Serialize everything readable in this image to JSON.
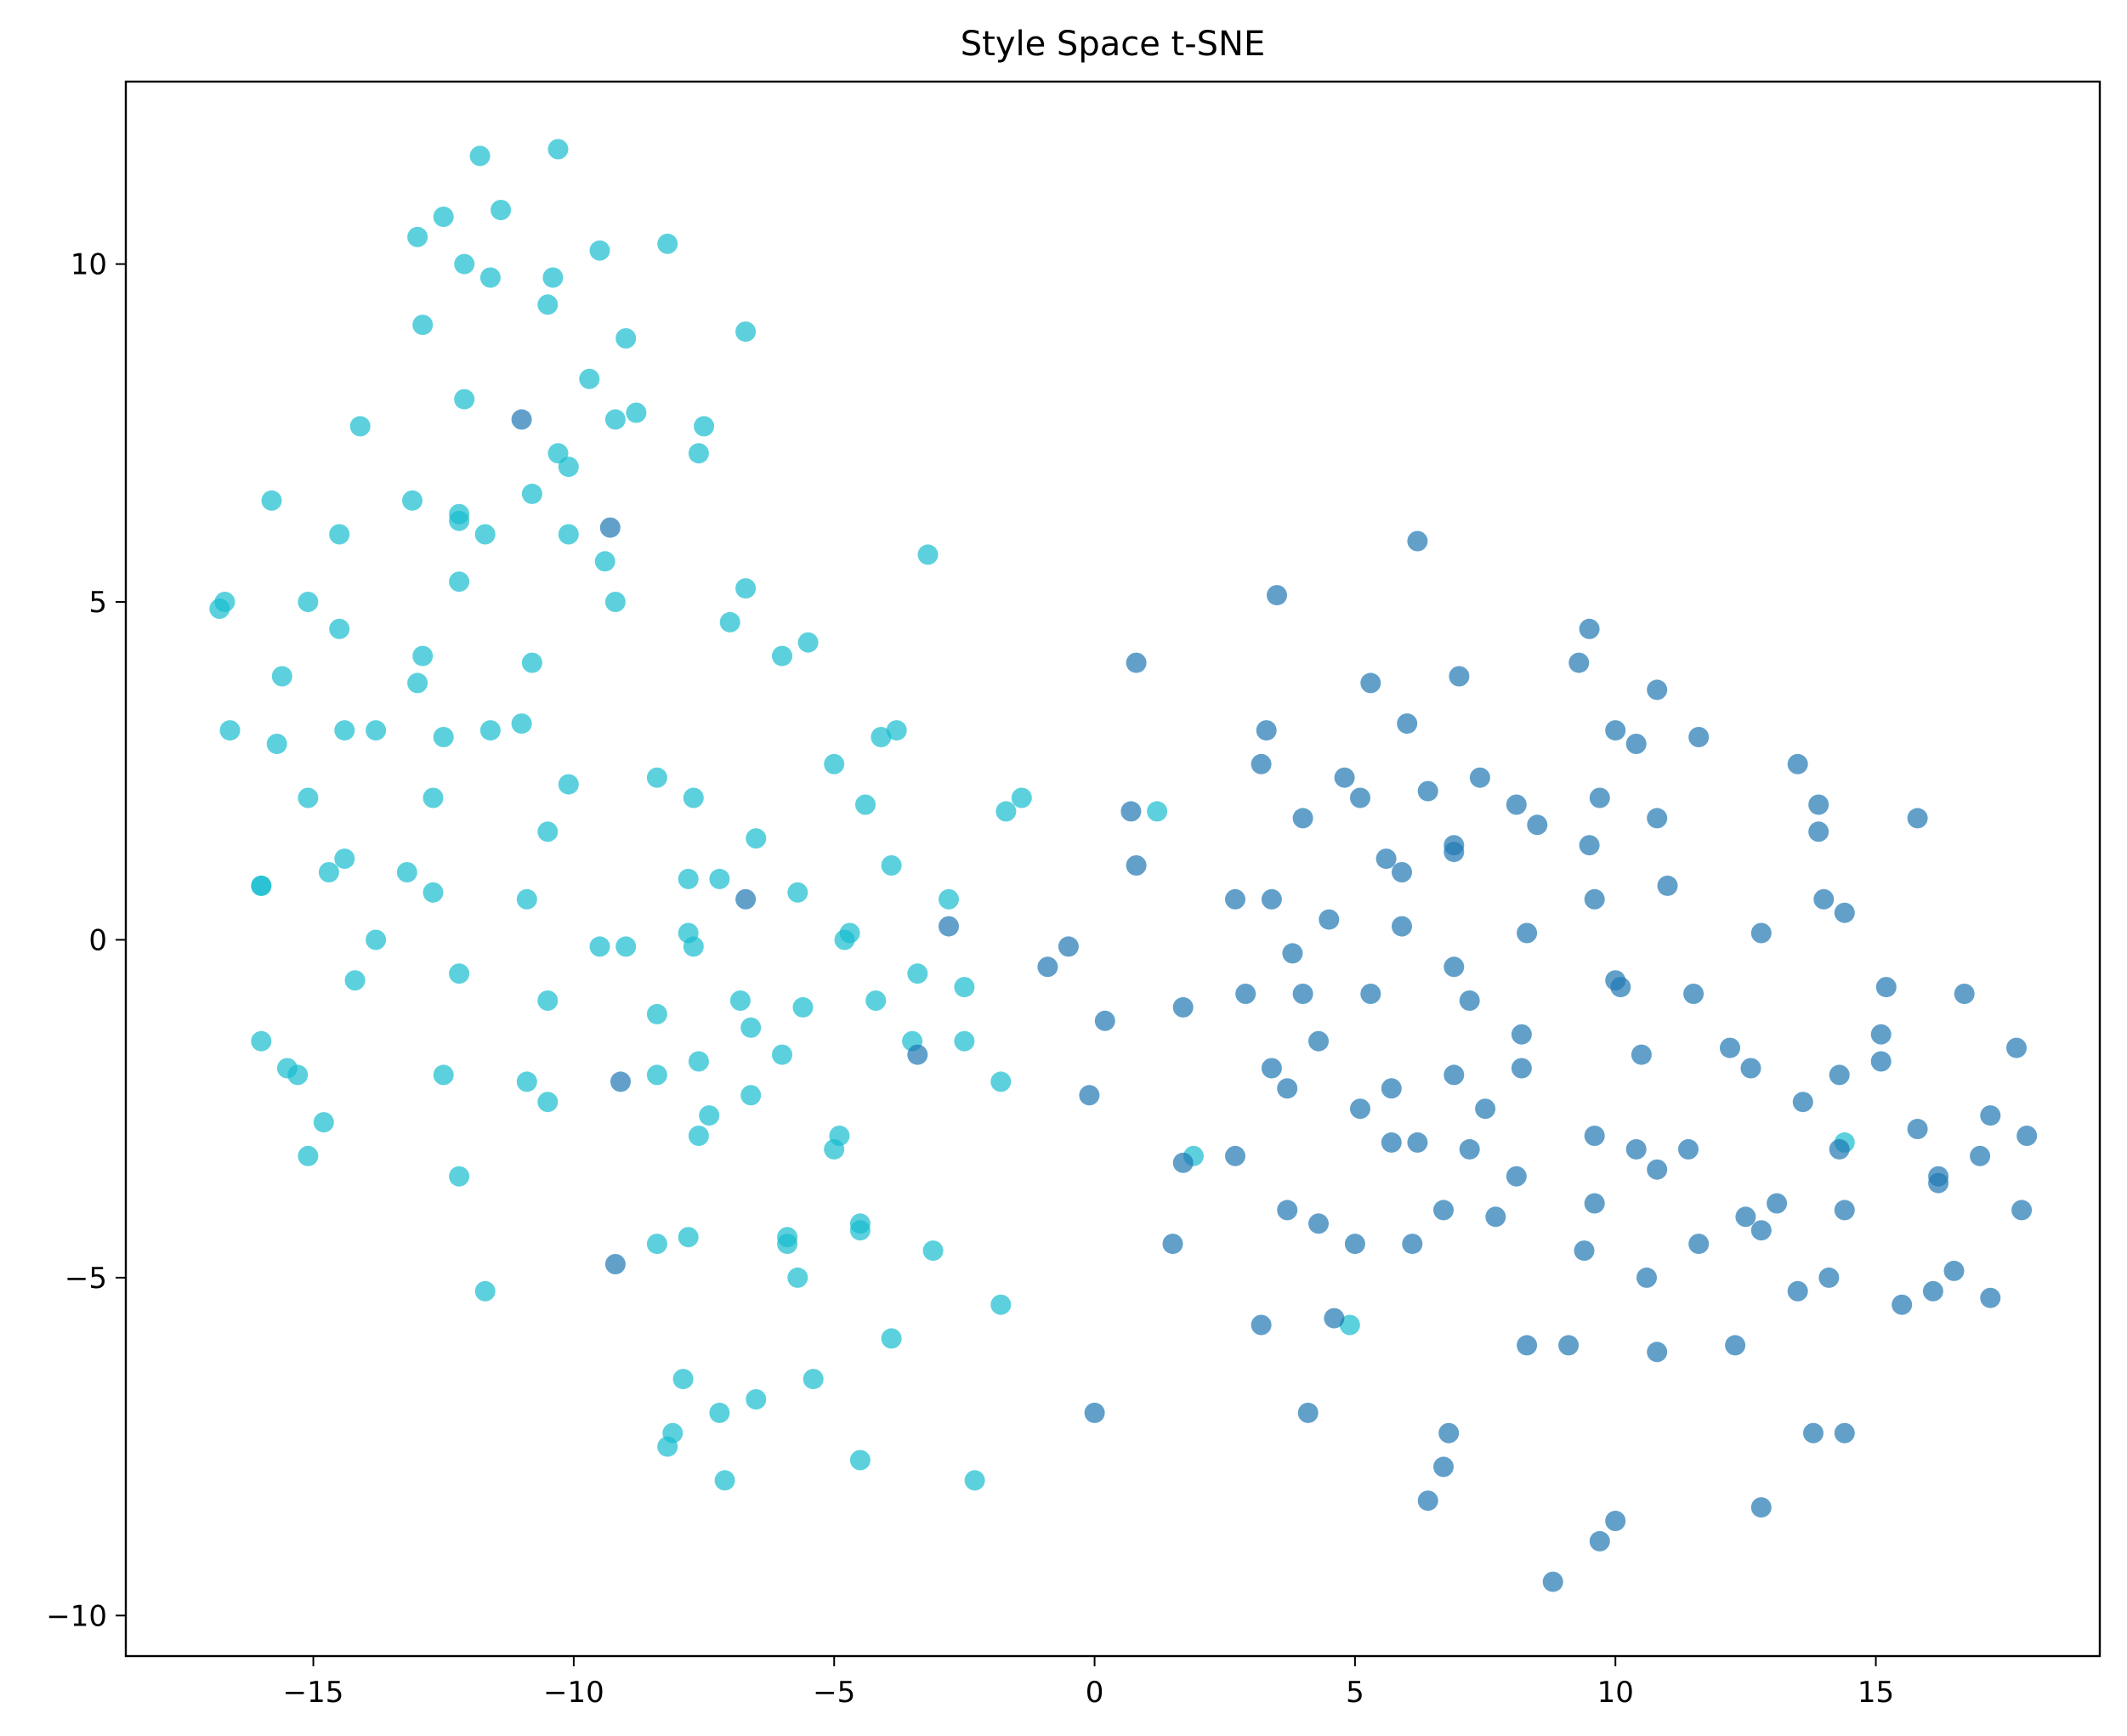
{
  "chart_data": {
    "type": "scatter",
    "title": "Style Space t-SNE",
    "xlabel": "",
    "ylabel": "",
    "xlim": [
      -18.6,
      19.3
    ],
    "ylim": [
      -10.6,
      12.7
    ],
    "x_ticks": [
      -15,
      -10,
      -5,
      0,
      5,
      10,
      15
    ],
    "y_ticks": [
      -10,
      -5,
      0,
      5,
      10
    ],
    "x_tick_labels": [
      "−15",
      "−10",
      "−5",
      "0",
      "5",
      "10",
      "15"
    ],
    "y_tick_labels": [
      "−10",
      "−5",
      "0",
      "5",
      "10"
    ],
    "grid": false,
    "legend": "none",
    "marker_alpha": 0.7,
    "series": [
      {
        "color": "#17becf",
        "points": [
          [
            -11.8,
            11.6
          ],
          [
            -10.3,
            11.7
          ],
          [
            -11.4,
            10.8
          ],
          [
            -12.5,
            10.7
          ],
          [
            -13.0,
            10.4
          ],
          [
            -9.5,
            10.2
          ],
          [
            -8.2,
            10.3
          ],
          [
            -12.1,
            10.0
          ],
          [
            -11.6,
            9.8
          ],
          [
            -10.4,
            9.8
          ],
          [
            -10.5,
            9.4
          ],
          [
            -12.9,
            9.1
          ],
          [
            -9.0,
            8.9
          ],
          [
            -6.7,
            9.0
          ],
          [
            -9.7,
            8.3
          ],
          [
            -12.1,
            8.0
          ],
          [
            -8.8,
            7.8
          ],
          [
            -9.2,
            7.7
          ],
          [
            -14.1,
            7.6
          ],
          [
            -7.5,
            7.6
          ],
          [
            -10.3,
            7.2
          ],
          [
            -7.6,
            7.2
          ],
          [
            -10.1,
            7.0
          ],
          [
            -10.8,
            6.6
          ],
          [
            -15.8,
            6.5
          ],
          [
            -13.1,
            6.5
          ],
          [
            -12.2,
            6.3
          ],
          [
            -12.2,
            6.2
          ],
          [
            -14.5,
            6.0
          ],
          [
            -11.7,
            6.0
          ],
          [
            -10.1,
            6.0
          ],
          [
            -9.4,
            5.6
          ],
          [
            -3.2,
            5.7
          ],
          [
            -12.2,
            5.3
          ],
          [
            -6.7,
            5.2
          ],
          [
            -15.1,
            5.0
          ],
          [
            -16.7,
            5.0
          ],
          [
            -16.8,
            4.9
          ],
          [
            -9.2,
            5.0
          ],
          [
            -14.5,
            4.6
          ],
          [
            -7.0,
            4.7
          ],
          [
            -5.5,
            4.4
          ],
          [
            -12.9,
            4.2
          ],
          [
            -6.0,
            4.2
          ],
          [
            -10.8,
            4.1
          ],
          [
            -15.6,
            3.9
          ],
          [
            -13.0,
            3.8
          ],
          [
            -11.0,
            3.2
          ],
          [
            -16.6,
            3.1
          ],
          [
            -14.4,
            3.1
          ],
          [
            -13.8,
            3.1
          ],
          [
            -11.6,
            3.1
          ],
          [
            -12.5,
            3.0
          ],
          [
            -3.8,
            3.1
          ],
          [
            -4.1,
            3.0
          ],
          [
            -15.7,
            2.9
          ],
          [
            -5.0,
            2.6
          ],
          [
            -8.4,
            2.4
          ],
          [
            -10.1,
            2.3
          ],
          [
            -12.7,
            2.1
          ],
          [
            -15.1,
            2.1
          ],
          [
            -7.7,
            2.1
          ],
          [
            -1.4,
            2.1
          ],
          [
            -4.4,
            2.0
          ],
          [
            -1.7,
            1.9
          ],
          [
            1.2,
            1.9
          ],
          [
            -10.5,
            1.6
          ],
          [
            -6.5,
            1.5
          ],
          [
            -14.4,
            1.2
          ],
          [
            -14.7,
            1.0
          ],
          [
            -13.2,
            1.0
          ],
          [
            -3.9,
            1.1
          ],
          [
            -7.8,
            0.9
          ],
          [
            -7.2,
            0.9
          ],
          [
            -16.0,
            0.8
          ],
          [
            -16.0,
            0.8
          ],
          [
            -12.7,
            0.7
          ],
          [
            -10.9,
            0.6
          ],
          [
            -5.7,
            0.7
          ],
          [
            -2.8,
            0.6
          ],
          [
            -13.8,
            0.0
          ],
          [
            -7.8,
            0.1
          ],
          [
            -4.7,
            0.1
          ],
          [
            -4.8,
            0.0
          ],
          [
            -9.5,
            -0.1
          ],
          [
            -9.0,
            -0.1
          ],
          [
            -7.7,
            -0.1
          ],
          [
            -14.2,
            -0.6
          ],
          [
            -12.2,
            -0.5
          ],
          [
            -3.4,
            -0.5
          ],
          [
            -2.5,
            -0.7
          ],
          [
            -10.5,
            -0.9
          ],
          [
            -6.8,
            -0.9
          ],
          [
            -5.6,
            -1.0
          ],
          [
            -4.2,
            -0.9
          ],
          [
            -8.4,
            -1.1
          ],
          [
            -6.6,
            -1.3
          ],
          [
            -16.0,
            -1.5
          ],
          [
            -3.5,
            -1.5
          ],
          [
            -2.5,
            -1.5
          ],
          [
            -6.0,
            -1.7
          ],
          [
            -7.6,
            -1.8
          ],
          [
            -15.5,
            -1.9
          ],
          [
            -15.3,
            -2.0
          ],
          [
            -12.5,
            -2.0
          ],
          [
            -8.4,
            -2.0
          ],
          [
            -10.9,
            -2.1
          ],
          [
            -1.8,
            -2.1
          ],
          [
            -10.5,
            -2.4
          ],
          [
            -6.6,
            -2.3
          ],
          [
            -14.8,
            -2.7
          ],
          [
            -7.4,
            -2.6
          ],
          [
            -7.6,
            -2.9
          ],
          [
            -4.9,
            -2.9
          ],
          [
            -5.0,
            -3.1
          ],
          [
            -15.1,
            -3.2
          ],
          [
            -12.2,
            -3.5
          ],
          [
            1.9,
            -3.2
          ],
          [
            -4.5,
            -4.2
          ],
          [
            -4.5,
            -4.3
          ],
          [
            -8.4,
            -4.5
          ],
          [
            -7.8,
            -4.4
          ],
          [
            -5.9,
            -4.5
          ],
          [
            -5.9,
            -4.4
          ],
          [
            -3.1,
            -4.6
          ],
          [
            -5.7,
            -5.0
          ],
          [
            -11.7,
            -5.2
          ],
          [
            -1.8,
            -5.4
          ],
          [
            4.9,
            -5.7
          ],
          [
            -3.9,
            -5.9
          ],
          [
            -7.9,
            -6.5
          ],
          [
            -5.4,
            -6.5
          ],
          [
            -6.5,
            -6.8
          ],
          [
            -7.2,
            -7.0
          ],
          [
            -8.1,
            -7.3
          ],
          [
            -8.2,
            -7.5
          ],
          [
            -4.5,
            -7.7
          ],
          [
            -7.1,
            -8.0
          ],
          [
            -2.3,
            -8.0
          ],
          [
            14.4,
            -3.0
          ]
        ]
      },
      {
        "color": "#1f77b4",
        "points": [
          [
            -11.0,
            7.7
          ],
          [
            -9.3,
            6.1
          ],
          [
            -6.7,
            0.6
          ],
          [
            -2.8,
            0.2
          ],
          [
            -3.4,
            -1.7
          ],
          [
            -9.1,
            -2.1
          ],
          [
            -9.2,
            -4.8
          ],
          [
            -0.5,
            -0.1
          ],
          [
            -0.9,
            -0.4
          ],
          [
            0.2,
            -1.2
          ],
          [
            -0.1,
            -2.3
          ],
          [
            0.0,
            -7.0
          ],
          [
            0.7,
            1.9
          ],
          [
            0.8,
            1.1
          ],
          [
            0.8,
            4.1
          ],
          [
            1.7,
            -1.0
          ],
          [
            1.7,
            -3.3
          ],
          [
            1.5,
            -4.5
          ],
          [
            2.7,
            0.6
          ],
          [
            2.9,
            -0.8
          ],
          [
            2.7,
            -3.2
          ],
          [
            3.2,
            2.6
          ],
          [
            3.3,
            3.1
          ],
          [
            3.4,
            0.6
          ],
          [
            3.4,
            -1.9
          ],
          [
            3.5,
            5.1
          ],
          [
            3.8,
            -0.2
          ],
          [
            3.7,
            -2.2
          ],
          [
            3.7,
            -4.0
          ],
          [
            3.2,
            -5.7
          ],
          [
            4.0,
            1.8
          ],
          [
            4.0,
            -0.8
          ],
          [
            4.3,
            -1.5
          ],
          [
            4.5,
            0.3
          ],
          [
            4.3,
            -4.2
          ],
          [
            4.1,
            -7.0
          ],
          [
            4.8,
            2.4
          ],
          [
            5.1,
            2.1
          ],
          [
            5.3,
            3.8
          ],
          [
            5.3,
            -0.8
          ],
          [
            5.7,
            -2.2
          ],
          [
            5.1,
            -2.5
          ],
          [
            5.0,
            -4.5
          ],
          [
            4.6,
            -5.6
          ],
          [
            5.6,
            1.2
          ],
          [
            5.9,
            1.0
          ],
          [
            5.9,
            0.2
          ],
          [
            6.0,
            3.2
          ],
          [
            5.7,
            -3.0
          ],
          [
            6.2,
            -3.0
          ],
          [
            6.1,
            -4.5
          ],
          [
            6.2,
            5.9
          ],
          [
            6.4,
            2.2
          ],
          [
            6.9,
            1.4
          ],
          [
            6.9,
            1.3
          ],
          [
            7.0,
            3.9
          ],
          [
            6.9,
            -0.4
          ],
          [
            7.2,
            -0.9
          ],
          [
            6.9,
            -2.0
          ],
          [
            7.2,
            -3.1
          ],
          [
            6.7,
            -4.0
          ],
          [
            7.4,
            2.4
          ],
          [
            7.5,
            -2.5
          ],
          [
            7.7,
            -4.1
          ],
          [
            6.8,
            -7.3
          ],
          [
            6.7,
            -7.8
          ],
          [
            6.4,
            -8.3
          ],
          [
            8.1,
            2.0
          ],
          [
            8.5,
            1.7
          ],
          [
            8.3,
            0.1
          ],
          [
            8.2,
            -1.4
          ],
          [
            8.2,
            -1.9
          ],
          [
            8.1,
            -3.5
          ],
          [
            8.3,
            -6.0
          ],
          [
            8.8,
            -9.5
          ],
          [
            9.1,
            -6.0
          ],
          [
            9.3,
            4.1
          ],
          [
            9.5,
            4.6
          ],
          [
            9.5,
            1.4
          ],
          [
            9.6,
            0.6
          ],
          [
            9.7,
            2.1
          ],
          [
            9.6,
            -2.9
          ],
          [
            9.6,
            -3.9
          ],
          [
            9.4,
            -4.6
          ],
          [
            10.0,
            3.1
          ],
          [
            10.4,
            2.9
          ],
          [
            10.0,
            -0.6
          ],
          [
            10.1,
            -0.7
          ],
          [
            10.4,
            -3.1
          ],
          [
            10.5,
            -1.7
          ],
          [
            10.6,
            -5.0
          ],
          [
            10.0,
            -8.6
          ],
          [
            9.7,
            -8.9
          ],
          [
            10.8,
            3.7
          ],
          [
            10.8,
            1.8
          ],
          [
            11.0,
            0.8
          ],
          [
            10.8,
            -3.4
          ],
          [
            10.8,
            -6.1
          ],
          [
            11.6,
            3.0
          ],
          [
            11.5,
            -0.8
          ],
          [
            11.4,
            -3.1
          ],
          [
            11.6,
            -4.5
          ],
          [
            12.2,
            -1.6
          ],
          [
            12.3,
            -6.0
          ],
          [
            12.6,
            -1.9
          ],
          [
            12.5,
            -4.1
          ],
          [
            12.8,
            0.1
          ],
          [
            12.8,
            -4.3
          ],
          [
            12.8,
            -8.4
          ],
          [
            13.1,
            -3.9
          ],
          [
            13.5,
            2.6
          ],
          [
            13.6,
            -2.4
          ],
          [
            13.5,
            -5.2
          ],
          [
            13.8,
            -7.3
          ],
          [
            13.9,
            2.0
          ],
          [
            13.9,
            1.6
          ],
          [
            14.0,
            0.6
          ],
          [
            14.1,
            -5.0
          ],
          [
            14.3,
            -2.0
          ],
          [
            14.3,
            -3.1
          ],
          [
            14.4,
            0.4
          ],
          [
            14.4,
            -4.0
          ],
          [
            14.4,
            -7.3
          ],
          [
            15.1,
            -1.4
          ],
          [
            15.2,
            -0.7
          ],
          [
            15.1,
            -1.8
          ],
          [
            15.5,
            -5.4
          ],
          [
            15.8,
            1.8
          ],
          [
            15.8,
            -2.8
          ],
          [
            16.1,
            -5.2
          ],
          [
            16.2,
            -3.5
          ],
          [
            16.2,
            -3.6
          ],
          [
            16.5,
            -4.9
          ],
          [
            16.7,
            -0.8
          ],
          [
            17.0,
            -3.2
          ],
          [
            17.2,
            -2.6
          ],
          [
            17.2,
            -5.3
          ],
          [
            17.7,
            -1.6
          ],
          [
            17.8,
            -4.0
          ],
          [
            17.9,
            -2.9
          ]
        ]
      }
    ]
  }
}
